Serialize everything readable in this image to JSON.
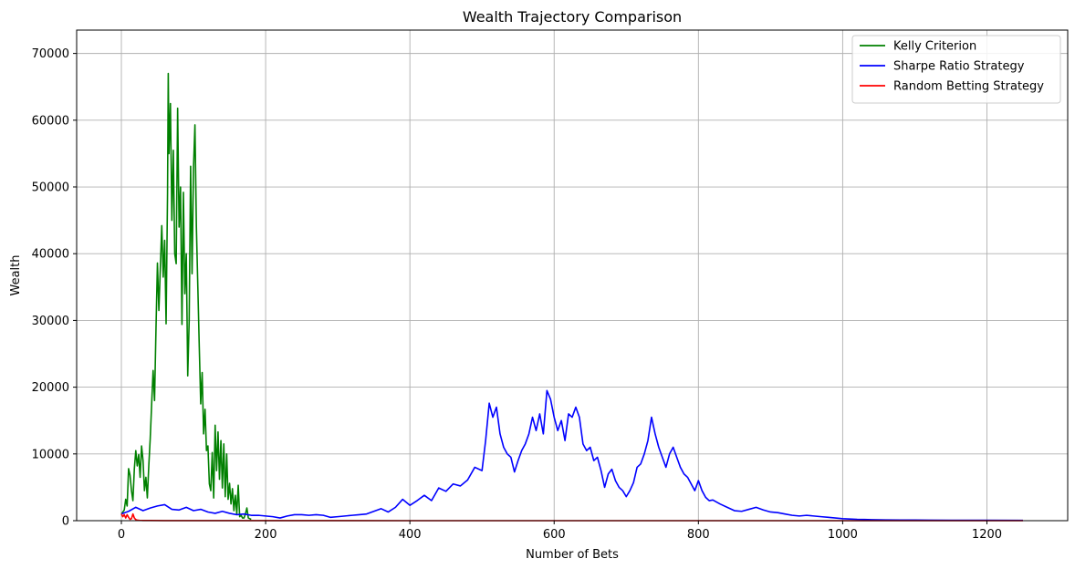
{
  "chart_data": {
    "type": "line",
    "title": "Wealth Trajectory Comparison",
    "xlabel": "Number of Bets",
    "ylabel": "Wealth",
    "xlim": [
      -62,
      1312
    ],
    "ylim": [
      0,
      73500
    ],
    "x_ticks": [
      0,
      200,
      400,
      600,
      800,
      1000,
      1200
    ],
    "y_ticks": [
      0,
      10000,
      20000,
      30000,
      40000,
      50000,
      60000,
      70000
    ],
    "grid": true,
    "legend_position": "top-right",
    "series": [
      {
        "name": "Kelly Criterion",
        "color": "#008000",
        "points": [
          [
            0,
            1000
          ],
          [
            4,
            1600
          ],
          [
            6,
            3200
          ],
          [
            8,
            2200
          ],
          [
            10,
            7800
          ],
          [
            12,
            6800
          ],
          [
            14,
            4500
          ],
          [
            16,
            3000
          ],
          [
            18,
            7800
          ],
          [
            20,
            10500
          ],
          [
            22,
            8200
          ],
          [
            24,
            9900
          ],
          [
            26,
            6500
          ],
          [
            28,
            11200
          ],
          [
            30,
            9000
          ],
          [
            32,
            4500
          ],
          [
            34,
            6500
          ],
          [
            36,
            3400
          ],
          [
            38,
            8200
          ],
          [
            40,
            12300
          ],
          [
            42,
            17500
          ],
          [
            44,
            22500
          ],
          [
            46,
            18000
          ],
          [
            48,
            28800
          ],
          [
            50,
            38600
          ],
          [
            52,
            31500
          ],
          [
            54,
            37800
          ],
          [
            56,
            44200
          ],
          [
            58,
            36500
          ],
          [
            60,
            42000
          ],
          [
            62,
            29500
          ],
          [
            64,
            49000
          ],
          [
            65,
            67000
          ],
          [
            66,
            55000
          ],
          [
            68,
            62500
          ],
          [
            70,
            45000
          ],
          [
            72,
            55500
          ],
          [
            74,
            40000
          ],
          [
            76,
            38500
          ],
          [
            78,
            61800
          ],
          [
            80,
            44000
          ],
          [
            82,
            50000
          ],
          [
            84,
            29400
          ],
          [
            86,
            49200
          ],
          [
            88,
            34000
          ],
          [
            90,
            40000
          ],
          [
            92,
            21700
          ],
          [
            94,
            30000
          ],
          [
            96,
            53100
          ],
          [
            98,
            37000
          ],
          [
            100,
            52800
          ],
          [
            102,
            59300
          ],
          [
            104,
            44000
          ],
          [
            106,
            35000
          ],
          [
            108,
            26000
          ],
          [
            110,
            17500
          ],
          [
            112,
            22200
          ],
          [
            114,
            13000
          ],
          [
            116,
            16700
          ],
          [
            118,
            10500
          ],
          [
            120,
            11200
          ],
          [
            122,
            5500
          ],
          [
            124,
            4500
          ],
          [
            126,
            10200
          ],
          [
            128,
            3400
          ],
          [
            130,
            14300
          ],
          [
            132,
            7500
          ],
          [
            134,
            13300
          ],
          [
            136,
            6200
          ],
          [
            138,
            12000
          ],
          [
            140,
            4900
          ],
          [
            142,
            11500
          ],
          [
            144,
            3600
          ],
          [
            146,
            10000
          ],
          [
            148,
            3200
          ],
          [
            150,
            5600
          ],
          [
            152,
            2500
          ],
          [
            154,
            4800
          ],
          [
            156,
            1500
          ],
          [
            158,
            3800
          ],
          [
            160,
            1000
          ],
          [
            162,
            5300
          ],
          [
            164,
            600
          ],
          [
            166,
            800
          ],
          [
            168,
            400
          ],
          [
            170,
            400
          ],
          [
            172,
            1000
          ],
          [
            174,
            1900
          ],
          [
            176,
            400
          ],
          [
            178,
            300
          ],
          [
            180,
            200
          ]
        ]
      },
      {
        "name": "Sharpe Ratio Strategy",
        "color": "#0000ff",
        "points": [
          [
            0,
            1000
          ],
          [
            10,
            1400
          ],
          [
            20,
            2000
          ],
          [
            30,
            1500
          ],
          [
            40,
            1900
          ],
          [
            50,
            2200
          ],
          [
            60,
            2400
          ],
          [
            70,
            1700
          ],
          [
            80,
            1600
          ],
          [
            90,
            2000
          ],
          [
            100,
            1500
          ],
          [
            110,
            1700
          ],
          [
            120,
            1300
          ],
          [
            130,
            1100
          ],
          [
            140,
            1400
          ],
          [
            150,
            1100
          ],
          [
            160,
            900
          ],
          [
            170,
            1000
          ],
          [
            180,
            800
          ],
          [
            190,
            800
          ],
          [
            200,
            700
          ],
          [
            210,
            600
          ],
          [
            220,
            400
          ],
          [
            230,
            700
          ],
          [
            240,
            900
          ],
          [
            250,
            900
          ],
          [
            260,
            800
          ],
          [
            270,
            900
          ],
          [
            280,
            800
          ],
          [
            290,
            500
          ],
          [
            300,
            600
          ],
          [
            310,
            700
          ],
          [
            320,
            800
          ],
          [
            330,
            900
          ],
          [
            340,
            1000
          ],
          [
            350,
            1400
          ],
          [
            360,
            1800
          ],
          [
            370,
            1300
          ],
          [
            380,
            2000
          ],
          [
            390,
            3200
          ],
          [
            400,
            2300
          ],
          [
            410,
            3000
          ],
          [
            420,
            3800
          ],
          [
            430,
            3000
          ],
          [
            440,
            4900
          ],
          [
            450,
            4400
          ],
          [
            460,
            5500
          ],
          [
            470,
            5200
          ],
          [
            480,
            6100
          ],
          [
            490,
            8000
          ],
          [
            500,
            7500
          ],
          [
            505,
            12000
          ],
          [
            510,
            17600
          ],
          [
            515,
            15500
          ],
          [
            520,
            17000
          ],
          [
            525,
            13000
          ],
          [
            530,
            11000
          ],
          [
            535,
            10000
          ],
          [
            540,
            9500
          ],
          [
            545,
            7300
          ],
          [
            550,
            9000
          ],
          [
            555,
            10500
          ],
          [
            560,
            11500
          ],
          [
            565,
            13000
          ],
          [
            570,
            15500
          ],
          [
            575,
            13500
          ],
          [
            580,
            16000
          ],
          [
            585,
            13000
          ],
          [
            590,
            19500
          ],
          [
            595,
            18200
          ],
          [
            600,
            15500
          ],
          [
            605,
            13500
          ],
          [
            610,
            15000
          ],
          [
            615,
            12000
          ],
          [
            620,
            16000
          ],
          [
            625,
            15500
          ],
          [
            630,
            17000
          ],
          [
            635,
            15500
          ],
          [
            640,
            11500
          ],
          [
            645,
            10500
          ],
          [
            650,
            11000
          ],
          [
            655,
            9000
          ],
          [
            660,
            9500
          ],
          [
            665,
            7500
          ],
          [
            670,
            5000
          ],
          [
            675,
            7000
          ],
          [
            680,
            7700
          ],
          [
            685,
            6000
          ],
          [
            690,
            5000
          ],
          [
            695,
            4500
          ],
          [
            700,
            3600
          ],
          [
            705,
            4500
          ],
          [
            710,
            5700
          ],
          [
            715,
            8000
          ],
          [
            720,
            8500
          ],
          [
            725,
            10000
          ],
          [
            730,
            12000
          ],
          [
            735,
            15500
          ],
          [
            740,
            13000
          ],
          [
            745,
            11000
          ],
          [
            750,
            9500
          ],
          [
            755,
            8000
          ],
          [
            760,
            10000
          ],
          [
            765,
            11000
          ],
          [
            770,
            9500
          ],
          [
            775,
            8000
          ],
          [
            780,
            7000
          ],
          [
            785,
            6500
          ],
          [
            790,
            5500
          ],
          [
            795,
            4500
          ],
          [
            800,
            6000
          ],
          [
            805,
            4500
          ],
          [
            810,
            3500
          ],
          [
            815,
            3000
          ],
          [
            820,
            3100
          ],
          [
            830,
            2500
          ],
          [
            840,
            2000
          ],
          [
            850,
            1500
          ],
          [
            860,
            1400
          ],
          [
            870,
            1700
          ],
          [
            880,
            2000
          ],
          [
            890,
            1600
          ],
          [
            900,
            1300
          ],
          [
            910,
            1200
          ],
          [
            920,
            1000
          ],
          [
            930,
            800
          ],
          [
            940,
            700
          ],
          [
            950,
            800
          ],
          [
            960,
            700
          ],
          [
            970,
            600
          ],
          [
            980,
            500
          ],
          [
            990,
            400
          ],
          [
            1000,
            300
          ],
          [
            1010,
            250
          ],
          [
            1020,
            200
          ],
          [
            1030,
            180
          ],
          [
            1040,
            150
          ],
          [
            1060,
            120
          ],
          [
            1080,
            100
          ],
          [
            1100,
            90
          ],
          [
            1150,
            70
          ],
          [
            1200,
            60
          ],
          [
            1250,
            50
          ]
        ]
      },
      {
        "name": "Random Betting Strategy",
        "color": "#ff0000",
        "points": [
          [
            0,
            1000
          ],
          [
            2,
            600
          ],
          [
            4,
            900
          ],
          [
            6,
            400
          ],
          [
            8,
            900
          ],
          [
            10,
            500
          ],
          [
            12,
            200
          ],
          [
            14,
            300
          ],
          [
            16,
            1000
          ],
          [
            18,
            400
          ],
          [
            20,
            150
          ],
          [
            22,
            80
          ],
          [
            25,
            50
          ],
          [
            30,
            30
          ],
          [
            40,
            20
          ],
          [
            60,
            10
          ],
          [
            100,
            5
          ],
          [
            200,
            3
          ],
          [
            400,
            2
          ],
          [
            800,
            1
          ],
          [
            1250,
            1
          ]
        ]
      }
    ]
  }
}
